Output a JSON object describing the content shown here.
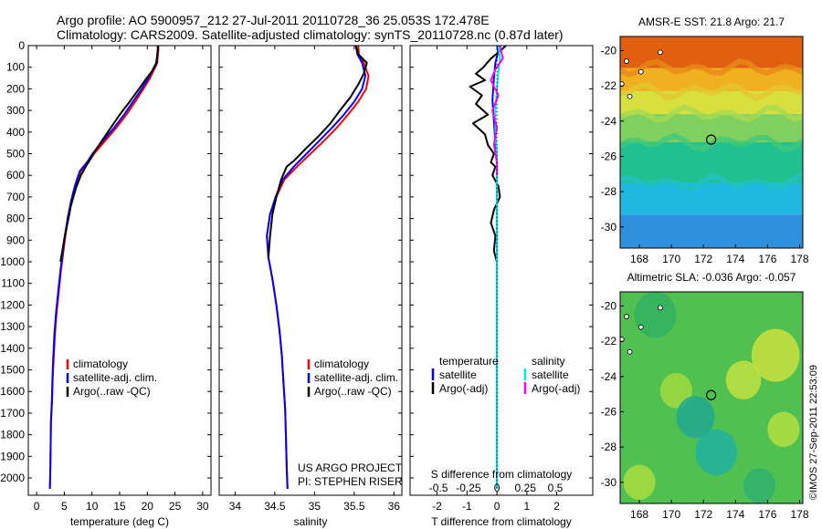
{
  "header": {
    "line1": "Argo profile: AO 5900957_212 27-Jul-2011 20110728_36 25.053S 172.478E",
    "line2": "Climatology: CARS2009. Satellite-adjusted climatology: synTS_20110728.nc (0.87d later)"
  },
  "colors": {
    "climatology": "#ff0000",
    "satellite": "#0000ff",
    "argo": "#000000",
    "salinity_satellite": "#00e5e5",
    "salinity_argo": "#ff00ff",
    "map_marker": "#000000"
  },
  "chart_data": [
    {
      "type": "line",
      "id": "temperature-profile",
      "xlabel": "temperature (deg C)",
      "xlim": [
        -1.5,
        31.5
      ],
      "ylim": [
        2080,
        0
      ],
      "yreversed": true,
      "xticks": [
        "0",
        "5",
        "10",
        "15",
        "20",
        "25",
        "30"
      ],
      "xtick_values": [
        0,
        5,
        10,
        15,
        20,
        25,
        30
      ],
      "yticks": [
        "0",
        "100",
        "200",
        "300",
        "400",
        "500",
        "600",
        "700",
        "800",
        "900",
        "1000",
        "1100",
        "1200",
        "1300",
        "1400",
        "1500",
        "1600",
        "1700",
        "1800",
        "1900",
        "2000"
      ],
      "ytick_values": [
        0,
        100,
        200,
        300,
        400,
        500,
        600,
        700,
        800,
        900,
        1000,
        1100,
        1200,
        1300,
        1400,
        1500,
        1600,
        1700,
        1800,
        1900,
        2000
      ],
      "legend": [
        "climatology",
        "satellite-adj. clim.",
        "Argo(..raw -QC)"
      ],
      "legend_position": "lower-center",
      "series": [
        {
          "name": "climatology",
          "color": "#ff0000",
          "x": [
            22.0,
            22.0,
            21.8,
            20.5,
            19.3,
            17.8,
            16.2,
            14.4,
            12.4,
            10.4,
            9.3,
            8.0,
            7.0,
            6.3,
            5.7,
            5.2,
            4.8,
            4.4,
            4.0,
            3.6,
            3.3,
            3.1,
            2.9,
            2.8,
            2.6,
            2.55,
            2.5,
            2.45,
            2.4
          ],
          "y": [
            0,
            20,
            80,
            150,
            200,
            260,
            320,
            380,
            440,
            500,
            540,
            580,
            650,
            720,
            800,
            880,
            960,
            1040,
            1140,
            1240,
            1340,
            1440,
            1540,
            1640,
            1740,
            1840,
            1940,
            2000,
            2050
          ]
        },
        {
          "name": "satellite-adj. clim.",
          "color": "#0000ff",
          "x": [
            21.9,
            21.9,
            21.7,
            20.2,
            19.0,
            17.4,
            15.8,
            14.0,
            12.0,
            10.1,
            9.1,
            7.8,
            6.9,
            6.2,
            5.6,
            5.1,
            4.7,
            4.3,
            3.9,
            3.5,
            3.2,
            3.0,
            2.85,
            2.75,
            2.6,
            2.55,
            2.5,
            2.45,
            2.4
          ],
          "y": [
            0,
            20,
            80,
            150,
            200,
            260,
            320,
            380,
            440,
            500,
            540,
            580,
            650,
            720,
            800,
            880,
            960,
            1040,
            1140,
            1240,
            1340,
            1440,
            1540,
            1640,
            1740,
            1840,
            1940,
            2000,
            2050
          ]
        },
        {
          "name": "Argo(..raw -QC)",
          "color": "#000000",
          "x": [
            21.9,
            21.9,
            21.6,
            20.8,
            19.6,
            18.5,
            16.8,
            15.0,
            13.4,
            11.8,
            10.5,
            9.6,
            9.1,
            8.0,
            7.1,
            6.2,
            5.6,
            5.1,
            4.7,
            4.3
          ],
          "y": [
            0,
            20,
            80,
            120,
            160,
            200,
            260,
            320,
            380,
            440,
            490,
            530,
            550,
            600,
            660,
            740,
            820,
            880,
            940,
            1000
          ]
        }
      ]
    },
    {
      "type": "line",
      "id": "salinity-profile",
      "xlabel": "salinity",
      "xlim": [
        33.8,
        36.1
      ],
      "ylim": [
        2080,
        0
      ],
      "yreversed": true,
      "xticks": [
        "34",
        "34.5",
        "35",
        "35.5",
        "36"
      ],
      "xtick_values": [
        34,
        34.5,
        35,
        35.5,
        36
      ],
      "legend": [
        "climatology",
        "satellite-adj. clim.",
        "Argo(..raw -QC)"
      ],
      "legend_position": "lower-center",
      "annotation": [
        "US ARGO PROJECT",
        "PI: STEPHEN RISER"
      ],
      "series": [
        {
          "name": "climatology",
          "color": "#ff0000",
          "x": [
            35.55,
            35.56,
            35.62,
            35.68,
            35.65,
            35.55,
            35.42,
            35.28,
            35.12,
            34.95,
            34.78,
            34.62,
            34.52,
            34.44,
            34.4,
            34.42,
            34.47,
            34.52,
            34.56,
            34.59,
            34.61,
            34.63,
            34.64,
            34.65,
            34.66
          ],
          "y": [
            0,
            40,
            80,
            140,
            200,
            260,
            320,
            380,
            440,
            500,
            560,
            620,
            700,
            780,
            880,
            980,
            1080,
            1200,
            1320,
            1440,
            1560,
            1680,
            1800,
            1950,
            2050
          ]
        },
        {
          "name": "satellite-adj. clim.",
          "color": "#0000ff",
          "x": [
            35.52,
            35.54,
            35.6,
            35.64,
            35.6,
            35.5,
            35.37,
            35.22,
            35.06,
            34.9,
            34.74,
            34.6,
            34.51,
            34.44,
            34.4,
            34.42,
            34.47,
            34.52,
            34.56,
            34.59,
            34.61,
            34.63,
            34.64,
            34.65,
            34.66
          ],
          "y": [
            0,
            40,
            80,
            140,
            200,
            260,
            320,
            380,
            440,
            500,
            560,
            620,
            700,
            780,
            880,
            980,
            1080,
            1200,
            1320,
            1440,
            1560,
            1680,
            1800,
            1950,
            2050
          ]
        },
        {
          "name": "Argo(..raw -QC)",
          "color": "#000000",
          "x": [
            35.52,
            35.55,
            35.66,
            35.62,
            35.55,
            35.45,
            35.32,
            35.2,
            35.05,
            34.88,
            34.75,
            34.65,
            34.58,
            34.52,
            34.47,
            34.44,
            34.42
          ],
          "y": [
            0,
            40,
            80,
            130,
            180,
            240,
            300,
            360,
            420,
            480,
            530,
            560,
            620,
            700,
            780,
            880,
            980
          ]
        }
      ]
    },
    {
      "type": "line",
      "id": "difference-profile",
      "xlabel": "T difference from climatology",
      "xlabel_top": "S difference from climatology",
      "xlim": [
        -2.9,
        3.2
      ],
      "ylim": [
        2080,
        0
      ],
      "yreversed": true,
      "xticks": [
        "-2",
        "-1",
        "0",
        "1",
        "2"
      ],
      "xtick_values": [
        -2,
        -1,
        0,
        1,
        2
      ],
      "sticks": [
        "-0.5",
        "-0.25",
        "0",
        "0.25",
        "0.5"
      ],
      "stick_values": [
        -1.95,
        -0.95,
        0,
        0.95,
        1.95
      ],
      "legend_left": [
        "temperature",
        "satellite",
        "Argo(-adj)"
      ],
      "legend_right": [
        "salinity",
        "satellite",
        "Argo(-adj)"
      ],
      "series": [
        {
          "name": "satellite",
          "group": "temperature",
          "color": "#0000ff",
          "x": [
            0.05,
            0.02,
            -0.05,
            -0.1,
            -0.15,
            -0.1,
            -0.05,
            0.0,
            0.0,
            0.0,
            0.0,
            0.0,
            0.0,
            0.0
          ],
          "y": [
            0,
            40,
            80,
            150,
            250,
            350,
            450,
            550,
            700,
            900,
            1200,
            1500,
            1800,
            2050
          ]
        },
        {
          "name": "Argo(-adj)",
          "group": "temperature",
          "color": "#000000",
          "x": [
            0.3,
            0.15,
            -0.2,
            -0.45,
            -0.7,
            -0.4,
            -0.9,
            -0.5,
            -0.7,
            -0.3,
            -0.8,
            -0.4,
            -0.3,
            -0.1,
            -0.2,
            -0.05,
            -0.15,
            0.05,
            0.1,
            -0.1,
            -0.2,
            -0.05,
            -0.1,
            0.0
          ],
          "y": [
            0,
            20,
            60,
            100,
            130,
            160,
            190,
            230,
            270,
            320,
            360,
            410,
            460,
            500,
            540,
            560,
            600,
            650,
            700,
            760,
            820,
            880,
            950,
            1000
          ]
        },
        {
          "name": "satellite",
          "group": "salinity",
          "color": "#00e5e5",
          "x": [
            0.05,
            0.1,
            0.05,
            0.0,
            -0.05,
            -0.05,
            0.0,
            0.0,
            0.0,
            0.0,
            0.0,
            0.0,
            0.0
          ],
          "y": [
            0,
            60,
            120,
            200,
            300,
            400,
            500,
            650,
            900,
            1200,
            1500,
            1800,
            2050
          ]
        },
        {
          "name": "Argo(-adj)",
          "group": "salinity",
          "color": "#ff00ff",
          "x": [
            0.1,
            0.2,
            -0.05,
            -0.2,
            0.05,
            -0.15,
            0.0,
            -0.1,
            0.0,
            0.0
          ],
          "y": [
            0,
            60,
            110,
            160,
            230,
            300,
            380,
            460,
            540,
            600
          ]
        }
      ]
    },
    {
      "type": "heatmap",
      "id": "sst-map",
      "title": "AMSR-E SST: 21.8 Argo: 21.7",
      "xlim": [
        166.8,
        178.2
      ],
      "ylim": [
        -31.2,
        -19.2
      ],
      "xticks": [
        "168",
        "170",
        "172",
        "174",
        "176",
        "178"
      ],
      "xtick_values": [
        168,
        170,
        172,
        174,
        176,
        178
      ],
      "yticks": [
        "-20",
        "-22",
        "-24",
        "-26",
        "-28",
        "-30"
      ],
      "ytick_values": [
        -20,
        -22,
        -24,
        -26,
        -28,
        -30
      ],
      "marker": {
        "lon": 172.478,
        "lat": -25.053
      },
      "bands": [
        {
          "lat_top": -19.2,
          "lat_bottom": -21.0,
          "color": "#e06010"
        },
        {
          "lat_top": -21.0,
          "lat_bottom": -22.3,
          "color": "#f0b020"
        },
        {
          "lat_top": -22.3,
          "lat_bottom": -23.6,
          "color": "#d8e040"
        },
        {
          "lat_top": -23.6,
          "lat_bottom": -25.2,
          "color": "#80d060"
        },
        {
          "lat_top": -25.2,
          "lat_bottom": -27.5,
          "color": "#20c090"
        },
        {
          "lat_top": -27.5,
          "lat_bottom": -29.3,
          "color": "#20b8e0"
        },
        {
          "lat_top": -29.3,
          "lat_bottom": -31.2,
          "color": "#3090e0"
        }
      ]
    },
    {
      "type": "heatmap",
      "id": "sla-map",
      "title": "Altimetric SLA: -0.036 Argo: -0.057",
      "xlim": [
        166.8,
        178.2
      ],
      "ylim": [
        -31.2,
        -19.2
      ],
      "xticks": [
        "168",
        "170",
        "172",
        "174",
        "176",
        "178"
      ],
      "xtick_values": [
        168,
        170,
        172,
        174,
        176,
        178
      ],
      "yticks": [
        "-20",
        "-22",
        "-24",
        "-26",
        "-28",
        "-30"
      ],
      "ytick_values": [
        -20,
        -22,
        -24,
        -26,
        -28,
        -30
      ],
      "marker": {
        "lon": 172.478,
        "lat": -25.053
      },
      "base_color": "#50c050",
      "patches": [
        {
          "lon": 169.0,
          "lat": -20.5,
          "r": 1.3,
          "color": "#30b060"
        },
        {
          "lon": 176.5,
          "lat": -22.8,
          "r": 1.5,
          "color": "#c8e040"
        },
        {
          "lon": 174.5,
          "lat": -24.2,
          "r": 1.1,
          "color": "#c0e040"
        },
        {
          "lon": 170.3,
          "lat": -24.8,
          "r": 1.0,
          "color": "#a0d840"
        },
        {
          "lon": 171.5,
          "lat": -26.3,
          "r": 1.2,
          "color": "#20a890"
        },
        {
          "lon": 172.8,
          "lat": -28.3,
          "r": 1.3,
          "color": "#20b0a0"
        },
        {
          "lon": 177.0,
          "lat": -27.0,
          "r": 1.0,
          "color": "#b0e040"
        },
        {
          "lon": 168.0,
          "lat": -30.0,
          "r": 1.0,
          "color": "#a8dc40"
        },
        {
          "lon": 175.5,
          "lat": -30.2,
          "r": 1.0,
          "color": "#30b070"
        }
      ]
    }
  ],
  "side_text": "©IMOS 27-Sep-2011 22:53:09"
}
